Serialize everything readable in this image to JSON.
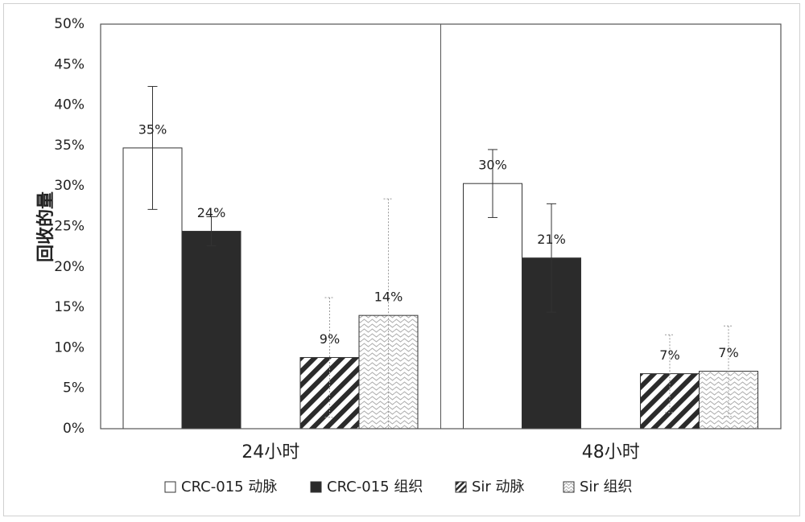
{
  "chart_data": {
    "type": "bar",
    "title": "",
    "xlabel": "",
    "ylabel": "回收的量",
    "ylim": [
      0,
      50
    ],
    "yticks": [
      "0%",
      "5%",
      "10%",
      "15%",
      "20%",
      "25%",
      "30%",
      "35%",
      "40%",
      "45%",
      "50%"
    ],
    "categories": [
      "24小时",
      "48小时"
    ],
    "grid": false,
    "legend_position": "bottom",
    "series": [
      {
        "name": "CRC-015 动脉",
        "values": [
          34.7,
          30.3
        ],
        "errors": [
          7.6,
          4.2
        ],
        "labels": [
          "35%",
          "30%"
        ],
        "fill": "white"
      },
      {
        "name": "CRC-015 组织",
        "values": [
          24.4,
          21.1
        ],
        "errors": [
          1.8,
          6.7
        ],
        "labels": [
          "24%",
          "21%"
        ],
        "fill": "black"
      },
      {
        "name": "Sir 动脉",
        "values": [
          8.8,
          6.8
        ],
        "errors": [
          7.4,
          4.8
        ],
        "labels": [
          "9%",
          "7%"
        ],
        "fill": "diagonal"
      },
      {
        "name": "Sir 组织",
        "values": [
          14.0,
          7.1
        ],
        "errors": [
          14.4,
          5.6
        ],
        "labels": [
          "14%",
          "7%"
        ],
        "fill": "wave"
      }
    ],
    "colors": {
      "dark": "#2b2b2b",
      "axis": "#555555",
      "error_bar_light": "#9a9a9a"
    }
  }
}
